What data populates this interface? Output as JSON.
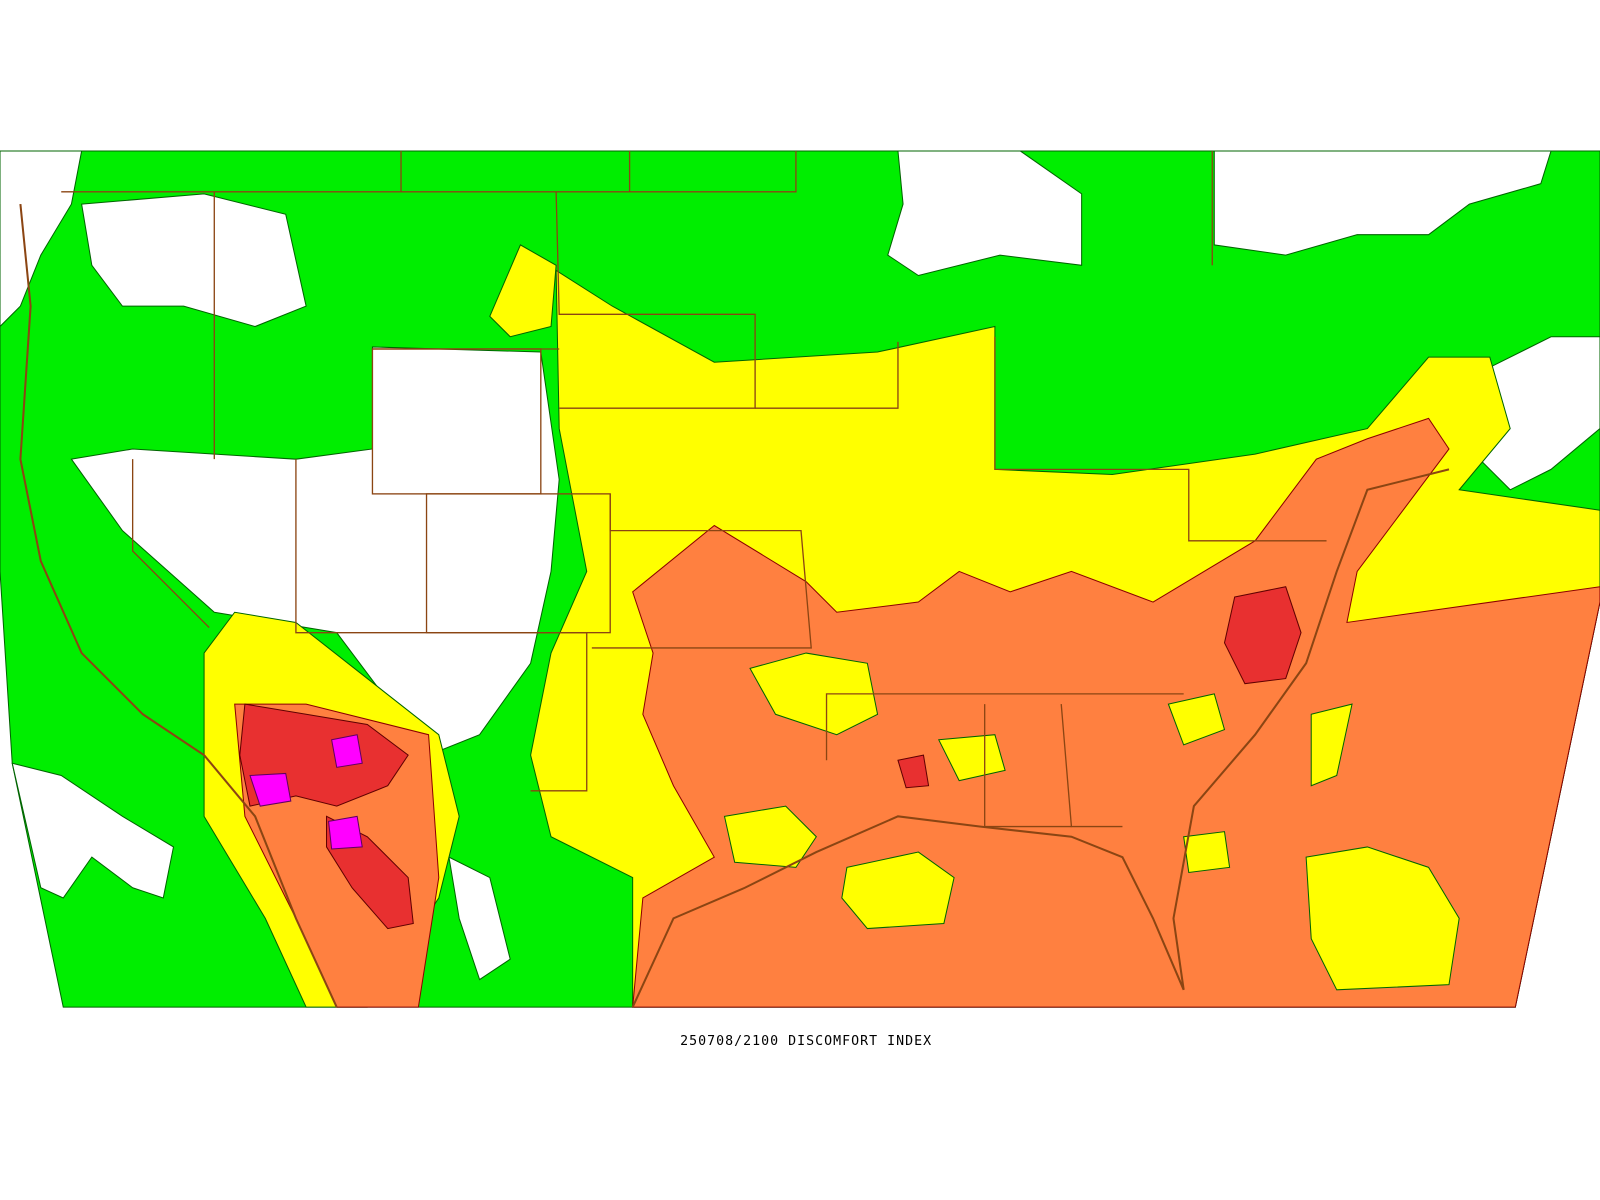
{
  "caption": "250708/2100 DISCOMFORT INDEX"
}
